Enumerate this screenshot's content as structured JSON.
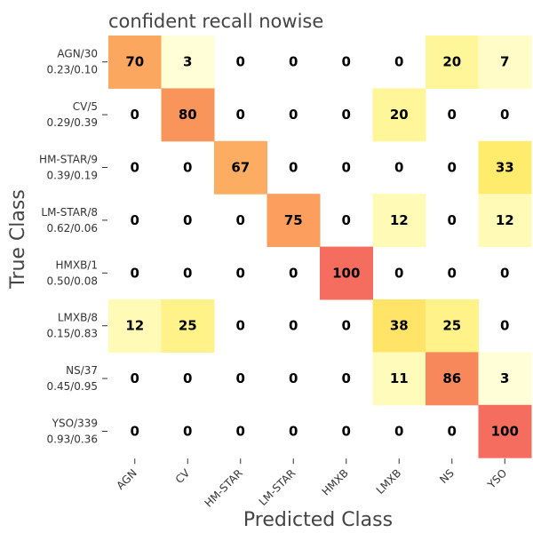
{
  "chart_data": {
    "type": "heatmap",
    "title": "confident recall nowise",
    "xlabel": "Predicted Class",
    "ylabel": "True Class",
    "x_categories": [
      "AGN",
      "CV",
      "HM-STAR",
      "LM-STAR",
      "HMXB",
      "LMXB",
      "NS",
      "YSO"
    ],
    "y_categories": [
      {
        "name": "AGN/30",
        "sub": "0.23/0.10"
      },
      {
        "name": "CV/5",
        "sub": "0.29/0.39"
      },
      {
        "name": "HM-STAR/9",
        "sub": "0.39/0.19"
      },
      {
        "name": "LM-STAR/8",
        "sub": "0.62/0.06"
      },
      {
        "name": "HMXB/1",
        "sub": "0.50/0.08"
      },
      {
        "name": "LMXB/8",
        "sub": "0.15/0.83"
      },
      {
        "name": "NS/37",
        "sub": "0.45/0.95"
      },
      {
        "name": "YSO/339",
        "sub": "0.93/0.36"
      }
    ],
    "values": [
      [
        70,
        3,
        0,
        0,
        0,
        0,
        20,
        7
      ],
      [
        0,
        80,
        0,
        0,
        0,
        20,
        0,
        0
      ],
      [
        0,
        0,
        67,
        0,
        0,
        0,
        0,
        33
      ],
      [
        0,
        0,
        0,
        75,
        0,
        12,
        0,
        12
      ],
      [
        0,
        0,
        0,
        0,
        100,
        0,
        0,
        0
      ],
      [
        12,
        25,
        0,
        0,
        0,
        38,
        25,
        0
      ],
      [
        0,
        0,
        0,
        0,
        0,
        11,
        86,
        3
      ],
      [
        0,
        0,
        0,
        0,
        0,
        0,
        0,
        100
      ]
    ],
    "vmin": 0,
    "vmax": 100,
    "colormap": [
      "#ffffe0",
      "#fff9a6",
      "#ffeb6b",
      "#fed162",
      "#fdae61",
      "#f88d5a",
      "#f46d5e"
    ]
  }
}
